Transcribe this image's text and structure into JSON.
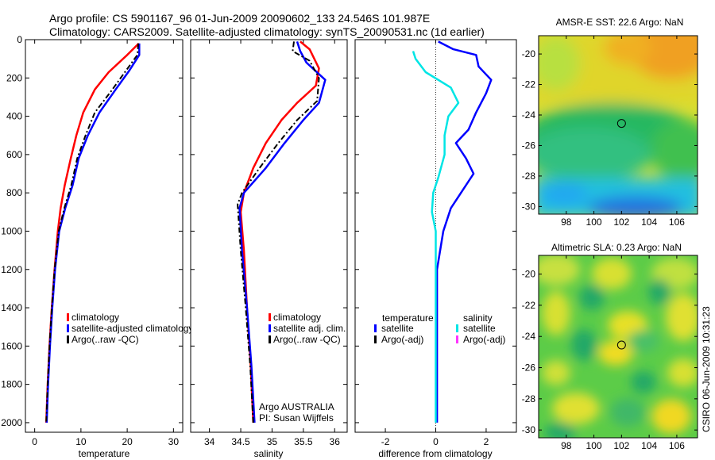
{
  "header": {
    "title_line1": "Argo profile: CS 5901167_96 01-Jun-2009 20090602_133 24.546S 101.987E",
    "title_line2": "Climatology: CARS2009. Satellite-adjusted climatology: synTS_20090531.nc (1d earlier)"
  },
  "chart_data": [
    {
      "type": "line",
      "id": "temperature",
      "xlabel": "temperature",
      "xlim": [
        -2,
        32
      ],
      "ylim": [
        2050,
        0
      ],
      "xticks": [
        "0",
        "10",
        "20",
        "30"
      ],
      "yticks": [
        "0",
        "200",
        "400",
        "600",
        "800",
        "1000",
        "1200",
        "1400",
        "1600",
        "1800",
        "2000"
      ],
      "legend": [
        "climatology",
        "satellite-adjusted climatology",
        "Argo(..raw -QC)"
      ],
      "series": [
        {
          "name": "climatology",
          "color": "#ff0000",
          "points": [
            [
              22.5,
              20
            ],
            [
              20,
              80
            ],
            [
              16,
              170
            ],
            [
              13,
              260
            ],
            [
              10.5,
              380
            ],
            [
              9,
              500
            ],
            [
              7.8,
              620
            ],
            [
              6.5,
              760
            ],
            [
              5.6,
              880
            ],
            [
              5.0,
              1000
            ],
            [
              4.3,
              1200
            ],
            [
              3.7,
              1400
            ],
            [
              3.2,
              1600
            ],
            [
              2.8,
              1800
            ],
            [
              2.5,
              2000
            ]
          ]
        },
        {
          "name": "satellite-adjusted climatology",
          "color": "#0000ff",
          "points": [
            [
              22.6,
              20
            ],
            [
              22.6,
              80
            ],
            [
              20.5,
              160
            ],
            [
              17.5,
              260
            ],
            [
              14,
              380
            ],
            [
              11.5,
              500
            ],
            [
              9.5,
              620
            ],
            [
              8.2,
              760
            ],
            [
              6.6,
              880
            ],
            [
              5.3,
              1000
            ],
            [
              4.4,
              1200
            ],
            [
              3.8,
              1400
            ],
            [
              3.3,
              1600
            ],
            [
              2.9,
              1800
            ],
            [
              2.6,
              2000
            ]
          ]
        },
        {
          "name": "Argo(..raw -QC)",
          "color": "#000000",
          "dash": "7,3,2,3",
          "points": [
            [
              22.4,
              20
            ],
            [
              22.2,
              80
            ],
            [
              19.5,
              170
            ],
            [
              16.5,
              270
            ],
            [
              13,
              380
            ],
            [
              11,
              500
            ],
            [
              9.2,
              620
            ],
            [
              7.9,
              760
            ],
            [
              6.4,
              880
            ],
            [
              5.2,
              1000
            ],
            [
              4.3,
              1200
            ],
            [
              3.7,
              1400
            ],
            [
              3.2,
              1600
            ],
            [
              2.8,
              1800
            ],
            [
              2.5,
              2000
            ]
          ]
        }
      ]
    },
    {
      "type": "line",
      "id": "salinity",
      "xlabel": "salinity",
      "xlim": [
        33.7,
        36.2
      ],
      "ylim": [
        2050,
        0
      ],
      "xticks": [
        "34",
        "34.5",
        "35",
        "35.5",
        "36"
      ],
      "legend": [
        "climatology",
        "satellite adj. clim.",
        "Argo(..raw -QC)"
      ],
      "annotation": [
        "Argo AUSTRALIA",
        "PI: Susan Wijffels"
      ],
      "series": [
        {
          "name": "climatology",
          "color": "#ff0000",
          "points": [
            [
              35.45,
              10
            ],
            [
              35.6,
              50
            ],
            [
              35.75,
              150
            ],
            [
              35.7,
              240
            ],
            [
              35.4,
              330
            ],
            [
              35.15,
              420
            ],
            [
              34.9,
              540
            ],
            [
              34.7,
              670
            ],
            [
              34.55,
              800
            ],
            [
              34.5,
              900
            ],
            [
              34.55,
              1100
            ],
            [
              34.6,
              1400
            ],
            [
              34.66,
              1700
            ],
            [
              34.7,
              2000
            ]
          ]
        },
        {
          "name": "satellite adj. clim.",
          "color": "#0000ff",
          "points": [
            [
              35.4,
              10
            ],
            [
              35.45,
              60
            ],
            [
              35.55,
              120
            ],
            [
              35.85,
              210
            ],
            [
              35.75,
              330
            ],
            [
              35.5,
              420
            ],
            [
              35.2,
              540
            ],
            [
              34.9,
              670
            ],
            [
              34.55,
              800
            ],
            [
              34.48,
              880
            ],
            [
              34.52,
              1100
            ],
            [
              34.6,
              1400
            ],
            [
              34.67,
              1700
            ],
            [
              34.72,
              2000
            ]
          ]
        },
        {
          "name": "Argo(..raw -QC)",
          "color": "#000000",
          "dash": "7,3,2,3",
          "points": [
            [
              35.35,
              10
            ],
            [
              35.33,
              60
            ],
            [
              35.6,
              110
            ],
            [
              35.75,
              200
            ],
            [
              35.72,
              320
            ],
            [
              35.4,
              420
            ],
            [
              35.1,
              540
            ],
            [
              34.8,
              670
            ],
            [
              34.52,
              800
            ],
            [
              34.45,
              860
            ],
            [
              34.5,
              1100
            ],
            [
              34.58,
              1400
            ],
            [
              34.65,
              1700
            ],
            [
              34.7,
              2000
            ]
          ]
        }
      ]
    },
    {
      "type": "line",
      "id": "difference",
      "xlabel": "difference from climatology",
      "xlim": [
        -3.2,
        3.2
      ],
      "ylim": [
        2050,
        0
      ],
      "xticks": [
        "-2",
        "0",
        "2"
      ],
      "legend_left_title": "temperature",
      "legend_right_title": "salinity",
      "legend_left": [
        "satellite",
        "Argo(-adj)"
      ],
      "legend_right": [
        "satellite",
        "Argo(-adj)"
      ],
      "series": [
        {
          "name": "temperature satellite",
          "color": "#0000ff",
          "points": [
            [
              0.1,
              10
            ],
            [
              0.7,
              50
            ],
            [
              1.6,
              80
            ],
            [
              1.7,
              140
            ],
            [
              2.2,
              210
            ],
            [
              2.0,
              280
            ],
            [
              1.6,
              380
            ],
            [
              1.3,
              470
            ],
            [
              0.8,
              540
            ],
            [
              1.2,
              620
            ],
            [
              1.5,
              700
            ],
            [
              1.0,
              800
            ],
            [
              0.6,
              880
            ],
            [
              0.3,
              1000
            ],
            [
              0.05,
              1200
            ],
            [
              0.05,
              2000
            ]
          ]
        },
        {
          "name": "salinity satellite",
          "color": "#00e5e5",
          "points": [
            [
              -0.9,
              60
            ],
            [
              -0.8,
              100
            ],
            [
              -0.4,
              170
            ],
            [
              0.6,
              250
            ],
            [
              0.9,
              330
            ],
            [
              0.5,
              400
            ],
            [
              0.35,
              500
            ],
            [
              0.35,
              600
            ],
            [
              0.1,
              720
            ],
            [
              -0.1,
              800
            ],
            [
              -0.15,
              900
            ],
            [
              0.0,
              1000
            ],
            [
              0.0,
              1200
            ],
            [
              0.0,
              2000
            ]
          ]
        }
      ]
    },
    {
      "type": "heatmap",
      "id": "sst_map",
      "title": "AMSR-E SST: 22.6 Argo: NaN",
      "xlim": [
        96,
        107.5
      ],
      "ylim": [
        -30.5,
        -18.8
      ],
      "xticks": [
        "98",
        "100",
        "102",
        "104",
        "106"
      ],
      "yticks": [
        "-20",
        "-22",
        "-24",
        "-26",
        "-28",
        "-30"
      ],
      "marker": [
        102,
        -24.55
      ]
    },
    {
      "type": "heatmap",
      "id": "sla_map",
      "title": "Altimetric SLA: 0.23 Argo: NaN",
      "xlim": [
        96,
        107.5
      ],
      "ylim": [
        -30.5,
        -18.8
      ],
      "xticks": [
        "98",
        "100",
        "102",
        "104",
        "106"
      ],
      "yticks": [
        "-20",
        "-22",
        "-24",
        "-26",
        "-28",
        "-30"
      ],
      "marker": [
        102,
        -24.55
      ]
    }
  ],
  "footer": {
    "stamp": "CSIRO 06-Jun-2009 10:31:23"
  }
}
